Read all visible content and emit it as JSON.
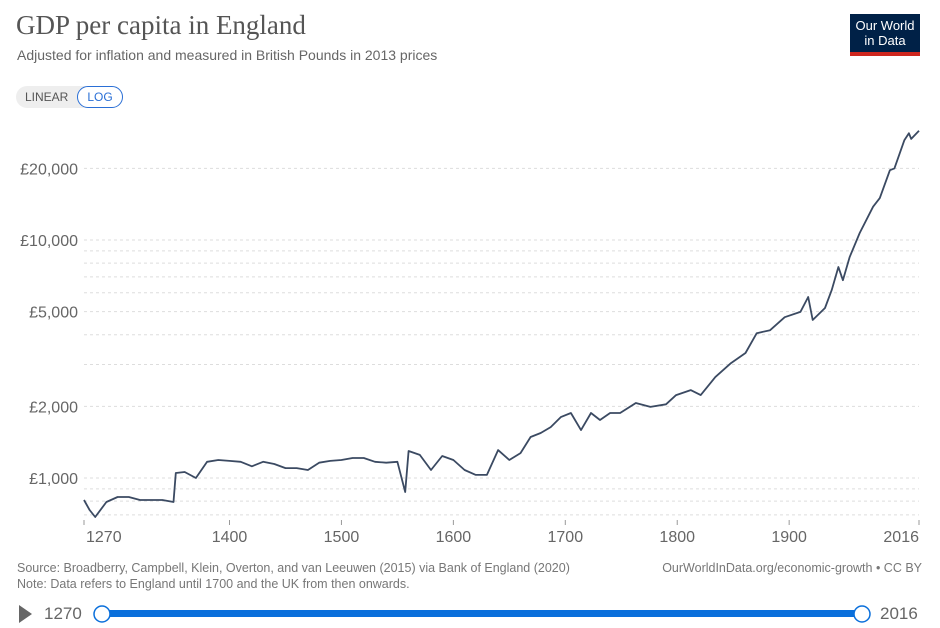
{
  "header": {
    "title": "GDP per capita in England",
    "subtitle": "Adjusted for inflation and measured in British Pounds in 2013 prices",
    "logo": "Our World in Data"
  },
  "scale_toggle": {
    "linear": "LINEAR",
    "log": "LOG",
    "selected": "LOG"
  },
  "footer": {
    "source": "Source: Broadberry, Campbell, Klein, Overton, and van Leeuwen (2015) via Bank of England (2020)",
    "note": "Note: Data refers to England until 1700 and the UK from then onwards.",
    "link": "OurWorldInData.org/economic-growth • CC BY"
  },
  "timeline": {
    "start": "1270",
    "end": "2016",
    "play_icon": "play-icon"
  },
  "colors": {
    "line": "#3b4a62",
    "accent": "#0a6fdb",
    "logo_bg": "#002147",
    "logo_bar": "#ce261e"
  },
  "chart_data": {
    "type": "line",
    "title": "GDP per capita in England",
    "yscale": "log",
    "xlim": [
      1270,
      2016
    ],
    "ylim": [
      650,
      30000
    ],
    "grid": true,
    "x_ticks": [
      "1270",
      "1400",
      "1500",
      "1600",
      "1700",
      "1800",
      "1900",
      "2016"
    ],
    "y_ticks": [
      {
        "value": 1000,
        "label": "£1,000"
      },
      {
        "value": 2000,
        "label": "£2,000"
      },
      {
        "value": 5000,
        "label": "£5,000"
      },
      {
        "value": 10000,
        "label": "£10,000"
      },
      {
        "value": 20000,
        "label": "£20,000"
      }
    ],
    "series": [
      {
        "x": [
          1270,
          1275,
          1280,
          1290,
          1300,
          1310,
          1320,
          1330,
          1340,
          1350,
          1352,
          1360,
          1370,
          1380,
          1390,
          1400,
          1410,
          1420,
          1430,
          1440,
          1450,
          1460,
          1470,
          1480,
          1490,
          1500,
          1510,
          1520,
          1530,
          1540,
          1550,
          1557,
          1560,
          1570,
          1580,
          1590,
          1600,
          1610,
          1620,
          1630,
          1640,
          1650,
          1660,
          1669,
          1678,
          1687,
          1696,
          1705,
          1714,
          1723,
          1731,
          1740,
          1749,
          1763,
          1776,
          1790,
          1799,
          1812,
          1821,
          1834,
          1848,
          1861,
          1871,
          1883,
          1896,
          1910,
          1917,
          1921,
          1932,
          1938,
          1944,
          1948,
          1954,
          1963,
          1975,
          1981,
          1990,
          1994,
          2003,
          2007,
          2009,
          2016
        ],
        "y": [
          808,
          734,
          686,
          793,
          832,
          832,
          808,
          808,
          808,
          793,
          1050,
          1060,
          1000,
          1170,
          1190,
          1180,
          1170,
          1120,
          1170,
          1145,
          1100,
          1100,
          1080,
          1160,
          1180,
          1190,
          1213,
          1213,
          1170,
          1160,
          1170,
          873,
          1298,
          1250,
          1080,
          1237,
          1190,
          1080,
          1030,
          1030,
          1310,
          1190,
          1273,
          1487,
          1546,
          1637,
          1803,
          1875,
          1590,
          1875,
          1752,
          1875,
          1875,
          2065,
          1990,
          2040,
          2230,
          2340,
          2230,
          2655,
          3040,
          3350,
          4060,
          4180,
          4740,
          4990,
          5760,
          4610,
          5180,
          6160,
          7700,
          6780,
          8470,
          10700,
          13800,
          15000,
          19640,
          20000,
          26300,
          28100,
          26600,
          28800
        ]
      }
    ]
  }
}
